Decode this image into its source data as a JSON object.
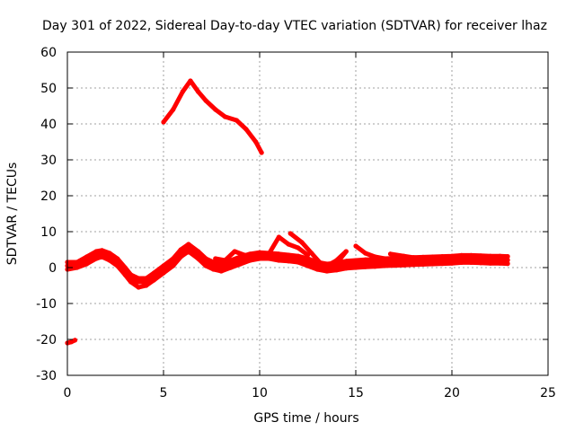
{
  "chart_data": {
    "type": "scatter",
    "title": "Day 301 of 2022, Sidereal Day-to-day VTEC variation (SDTVAR) for receiver lhaz",
    "xlabel": "GPS time / hours",
    "ylabel": "SDTVAR / TECUs",
    "xlim": [
      0,
      25
    ],
    "ylim": [
      -30,
      60
    ],
    "xticks": [
      0,
      5,
      10,
      15,
      20,
      25
    ],
    "yticks": [
      -30,
      -20,
      -10,
      0,
      10,
      20,
      30,
      40,
      50,
      60
    ],
    "grid": true,
    "series_color": "#ff0000",
    "series": [
      {
        "name": "main-band",
        "points": [
          [
            0.0,
            0.5
          ],
          [
            0.5,
            0.8
          ],
          [
            1.0,
            2.0
          ],
          [
            1.5,
            3.5
          ],
          [
            1.8,
            4.0
          ],
          [
            2.2,
            3.0
          ],
          [
            2.6,
            1.5
          ],
          [
            3.0,
            -1.0
          ],
          [
            3.3,
            -3.0
          ],
          [
            3.7,
            -4.0
          ],
          [
            4.1,
            -4.0
          ],
          [
            4.5,
            -2.5
          ],
          [
            5.0,
            -0.5
          ],
          [
            5.5,
            1.5
          ],
          [
            5.9,
            4.0
          ],
          [
            6.3,
            5.5
          ],
          [
            6.8,
            3.5
          ],
          [
            7.2,
            1.5
          ],
          [
            7.6,
            0.5
          ],
          [
            8.0,
            0.0
          ],
          [
            8.5,
            1.0
          ],
          [
            9.0,
            2.0
          ],
          [
            9.5,
            3.0
          ],
          [
            10.0,
            3.5
          ],
          [
            10.5,
            3.5
          ],
          [
            11.0,
            3.0
          ],
          [
            11.5,
            2.8
          ],
          [
            12.0,
            2.5
          ],
          [
            12.5,
            1.5
          ],
          [
            13.0,
            0.5
          ],
          [
            13.5,
            0.0
          ],
          [
            14.0,
            0.3
          ],
          [
            14.5,
            0.8
          ],
          [
            15.0,
            1.0
          ],
          [
            15.5,
            1.2
          ],
          [
            16.0,
            1.3
          ],
          [
            16.5,
            1.5
          ],
          [
            17.0,
            1.6
          ],
          [
            17.5,
            1.7
          ],
          [
            18.0,
            1.8
          ],
          [
            18.5,
            1.9
          ],
          [
            19.0,
            2.0
          ],
          [
            19.5,
            2.1
          ],
          [
            20.0,
            2.2
          ],
          [
            20.5,
            2.4
          ],
          [
            21.0,
            2.4
          ],
          [
            21.5,
            2.3
          ],
          [
            22.0,
            2.2
          ],
          [
            22.5,
            2.2
          ],
          [
            22.9,
            2.1
          ]
        ]
      },
      {
        "name": "main-band-lower",
        "points": [
          [
            0.0,
            -0.5
          ],
          [
            0.5,
            0.0
          ],
          [
            1.0,
            1.0
          ],
          [
            1.5,
            2.5
          ],
          [
            1.8,
            3.0
          ],
          [
            2.2,
            2.0
          ],
          [
            2.6,
            0.5
          ],
          [
            3.0,
            -2.0
          ],
          [
            3.3,
            -4.0
          ],
          [
            3.7,
            -5.5
          ],
          [
            4.1,
            -5.0
          ],
          [
            4.5,
            -3.5
          ],
          [
            5.0,
            -1.5
          ],
          [
            5.5,
            0.5
          ],
          [
            5.9,
            3.0
          ],
          [
            6.3,
            4.5
          ],
          [
            6.8,
            2.5
          ],
          [
            7.2,
            0.5
          ],
          [
            7.6,
            -0.5
          ],
          [
            8.0,
            -1.0
          ],
          [
            8.5,
            0.0
          ],
          [
            9.0,
            1.0
          ],
          [
            9.5,
            2.0
          ],
          [
            10.0,
            2.5
          ],
          [
            10.5,
            2.5
          ],
          [
            11.0,
            2.0
          ],
          [
            11.5,
            1.8
          ],
          [
            12.0,
            1.5
          ],
          [
            12.5,
            0.5
          ],
          [
            13.0,
            -0.5
          ],
          [
            13.5,
            -1.0
          ],
          [
            14.0,
            -0.7
          ],
          [
            14.5,
            -0.2
          ],
          [
            15.0,
            0.0
          ],
          [
            15.5,
            0.2
          ],
          [
            16.0,
            0.3
          ],
          [
            16.5,
            0.5
          ],
          [
            17.0,
            0.6
          ],
          [
            17.5,
            0.7
          ],
          [
            18.0,
            0.8
          ],
          [
            18.5,
            0.9
          ],
          [
            19.0,
            1.0
          ],
          [
            19.5,
            1.1
          ],
          [
            20.0,
            1.2
          ],
          [
            20.5,
            1.4
          ],
          [
            21.0,
            1.4
          ],
          [
            21.5,
            1.3
          ],
          [
            22.0,
            1.2
          ],
          [
            22.5,
            1.2
          ],
          [
            22.9,
            1.1
          ]
        ]
      },
      {
        "name": "main-band-upper",
        "points": [
          [
            0.0,
            1.5
          ],
          [
            0.5,
            1.5
          ],
          [
            1.0,
            3.0
          ],
          [
            1.5,
            4.5
          ],
          [
            1.8,
            4.8
          ],
          [
            2.2,
            4.0
          ],
          [
            2.6,
            2.5
          ],
          [
            3.0,
            0.0
          ],
          [
            3.3,
            -2.0
          ],
          [
            3.7,
            -3.0
          ],
          [
            4.1,
            -3.0
          ],
          [
            4.5,
            -1.5
          ],
          [
            5.0,
            0.5
          ],
          [
            5.5,
            2.5
          ],
          [
            5.9,
            5.0
          ],
          [
            6.3,
            6.5
          ],
          [
            6.8,
            4.5
          ],
          [
            7.2,
            2.5
          ],
          [
            7.6,
            1.5
          ],
          [
            8.0,
            1.0
          ],
          [
            8.5,
            2.0
          ],
          [
            9.0,
            3.0
          ],
          [
            9.5,
            3.8
          ],
          [
            10.0,
            4.2
          ],
          [
            10.5,
            4.0
          ],
          [
            11.0,
            3.8
          ],
          [
            11.5,
            3.5
          ],
          [
            12.0,
            3.2
          ],
          [
            12.5,
            2.5
          ],
          [
            13.0,
            1.5
          ],
          [
            13.5,
            1.0
          ],
          [
            14.0,
            1.3
          ],
          [
            14.5,
            1.8
          ],
          [
            15.0,
            2.0
          ],
          [
            15.5,
            2.2
          ],
          [
            16.0,
            2.3
          ],
          [
            16.5,
            2.5
          ],
          [
            17.0,
            2.6
          ],
          [
            17.5,
            2.7
          ],
          [
            18.0,
            2.8
          ],
          [
            18.5,
            2.9
          ],
          [
            19.0,
            3.0
          ],
          [
            19.5,
            3.1
          ],
          [
            20.0,
            3.2
          ],
          [
            20.5,
            3.4
          ],
          [
            21.0,
            3.4
          ],
          [
            21.5,
            3.3
          ],
          [
            22.0,
            3.2
          ],
          [
            22.5,
            3.2
          ],
          [
            22.9,
            3.1
          ]
        ]
      },
      {
        "name": "spike-11h",
        "points": [
          [
            10.5,
            4.0
          ],
          [
            11.0,
            8.5
          ],
          [
            11.5,
            6.5
          ],
          [
            12.0,
            5.5
          ],
          [
            12.5,
            3.5
          ]
        ]
      },
      {
        "name": "spike-11p7h",
        "points": [
          [
            11.6,
            9.5
          ],
          [
            12.2,
            7.0
          ],
          [
            12.7,
            4.0
          ],
          [
            13.2,
            1.0
          ],
          [
            13.6,
            0.0
          ]
        ]
      },
      {
        "name": "spike-14p5h",
        "points": [
          [
            13.5,
            0.5
          ],
          [
            14.0,
            2.0
          ],
          [
            14.5,
            4.5
          ],
          [
            14.2,
            2.5
          ]
        ]
      },
      {
        "name": "spike-15h",
        "points": [
          [
            15.0,
            6.0
          ],
          [
            15.5,
            4.0
          ],
          [
            16.0,
            3.0
          ],
          [
            16.5,
            2.5
          ],
          [
            17.0,
            2.0
          ]
        ]
      },
      {
        "name": "spike-17h",
        "points": [
          [
            16.8,
            3.8
          ],
          [
            17.5,
            3.2
          ],
          [
            18.0,
            2.8
          ],
          [
            18.5,
            2.6
          ]
        ]
      },
      {
        "name": "branch-8h",
        "points": [
          [
            7.7,
            2.5
          ],
          [
            8.2,
            2.0
          ],
          [
            8.7,
            4.5
          ],
          [
            9.2,
            3.5
          ],
          [
            9.7,
            3.0
          ]
        ]
      },
      {
        "name": "early-low",
        "points": [
          [
            0.0,
            -21.0
          ],
          [
            0.2,
            -20.7
          ],
          [
            0.4,
            -20.2
          ]
        ]
      },
      {
        "name": "upper-arc",
        "points": [
          [
            5.0,
            40.5
          ],
          [
            5.5,
            44.0
          ],
          [
            6.0,
            49.0
          ],
          [
            6.4,
            52.0
          ],
          [
            6.8,
            49.0
          ],
          [
            7.2,
            46.5
          ],
          [
            7.7,
            44.0
          ],
          [
            8.2,
            42.0
          ],
          [
            8.8,
            41.0
          ],
          [
            9.3,
            38.5
          ],
          [
            9.8,
            35.0
          ],
          [
            10.1,
            32.0
          ]
        ]
      }
    ]
  }
}
